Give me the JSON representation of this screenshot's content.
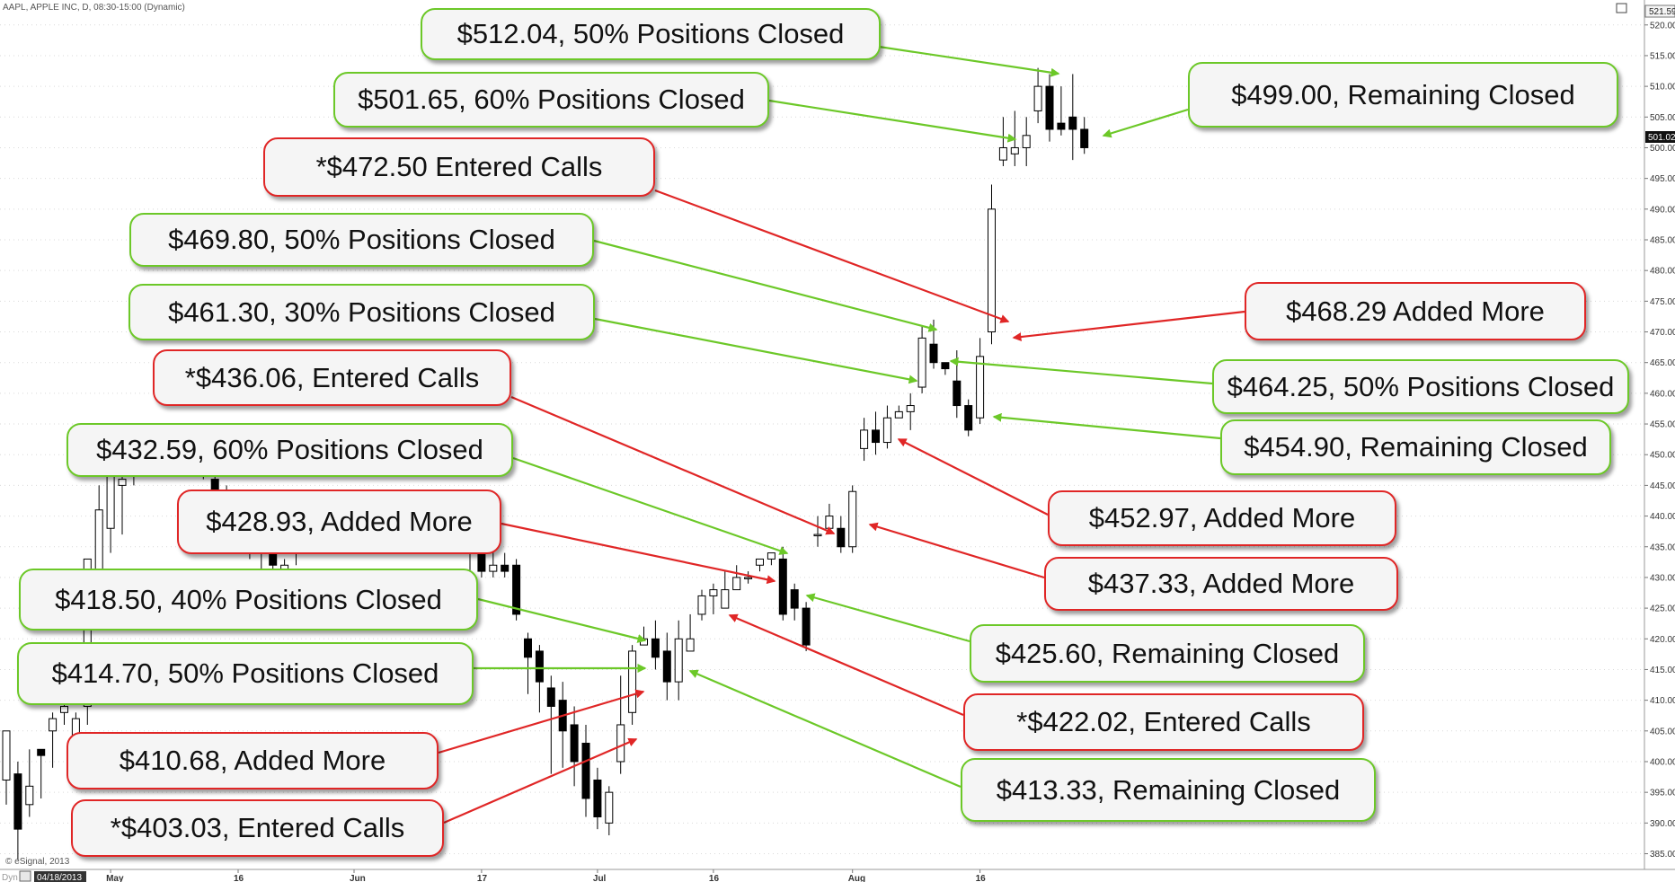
{
  "window": {
    "header_text": "AAPL, APPLE INC, D, 08:30-15:00 (Dynamic)",
    "corner_value": "521.59",
    "last_price_label": "501.02",
    "copyright": "© eSignal, 2013",
    "start_date_label": "04/18/2013",
    "mode_label": "Dyn"
  },
  "colors": {
    "exit": "#6cc828",
    "entry": "#e02626",
    "bull_fill": "#ffffff",
    "bear_fill": "#000000",
    "grid": "#d9d9d9"
  },
  "chart_data": {
    "type": "candlestick",
    "title": "",
    "xlabel": "",
    "ylabel": "",
    "ylim": [
      382,
      526
    ],
    "y_ticks": [
      "385.00",
      "390.00",
      "395.00",
      "400.00",
      "405.00",
      "410.00",
      "415.00",
      "420.00",
      "425.00",
      "430.00",
      "435.00",
      "440.00",
      "445.00",
      "450.00",
      "455.00",
      "460.00",
      "465.00",
      "470.00",
      "475.00",
      "480.00",
      "485.00",
      "490.00",
      "495.00",
      "500.00",
      "505.00",
      "510.00",
      "515.00",
      "520.00"
    ],
    "x_ticks": [
      {
        "label": "May",
        "bar": 9
      },
      {
        "label": "16",
        "bar": 20
      },
      {
        "label": "Jun",
        "bar": 30
      },
      {
        "label": "17",
        "bar": 41
      },
      {
        "label": "Jul",
        "bar": 51
      },
      {
        "label": "16",
        "bar": 61
      },
      {
        "label": "Aug",
        "bar": 73
      },
      {
        "label": "16",
        "bar": 84
      }
    ],
    "candles": [
      [
        397,
        405,
        393,
        405
      ],
      [
        398,
        389,
        384,
        400
      ],
      [
        393,
        396,
        391,
        402
      ],
      [
        402,
        401,
        394,
        402
      ],
      [
        405,
        407,
        399,
        408
      ],
      [
        408,
        409,
        406,
        410
      ],
      [
        402,
        407,
        401,
        408
      ],
      [
        409,
        433,
        406,
        433
      ],
      [
        426,
        441,
        424,
        445
      ],
      [
        438,
        448,
        434,
        449
      ],
      [
        445,
        446,
        437,
        448
      ],
      [
        448,
        452,
        445,
        454
      ],
      [
        450,
        452,
        448,
        453
      ],
      [
        449,
        450,
        447,
        451
      ],
      [
        451,
        453,
        449,
        454
      ],
      [
        453,
        451,
        448,
        454
      ],
      [
        451,
        449,
        447,
        453
      ],
      [
        450,
        448,
        446,
        451
      ],
      [
        446,
        444,
        441,
        447
      ],
      [
        444,
        442,
        439,
        445
      ],
      [
        440,
        438,
        435,
        441
      ],
      [
        438,
        436,
        433,
        439
      ],
      [
        436,
        434,
        431,
        437
      ],
      [
        434,
        432,
        429,
        435
      ],
      [
        431,
        432,
        428,
        433
      ],
      [
        434,
        436,
        432,
        437
      ],
      [
        437,
        440,
        435,
        441
      ],
      [
        441,
        440,
        437,
        442
      ],
      [
        439,
        439,
        436,
        440
      ],
      [
        438,
        440,
        437,
        441
      ],
      [
        439,
        442,
        438,
        443
      ],
      [
        441,
        439,
        437,
        442
      ],
      [
        440,
        441,
        438,
        442
      ],
      [
        442,
        443,
        440,
        444
      ],
      [
        441,
        440,
        438,
        442
      ],
      [
        439,
        440,
        437,
        441
      ],
      [
        441,
        442,
        439,
        443
      ],
      [
        442,
        441,
        439,
        443
      ],
      [
        440,
        439,
        437,
        441
      ],
      [
        438,
        437,
        434,
        439
      ],
      [
        436,
        434,
        431,
        437
      ],
      [
        434,
        431,
        430,
        437
      ],
      [
        431,
        432,
        430,
        436
      ],
      [
        432,
        431,
        430,
        434
      ],
      [
        432,
        424,
        423,
        433
      ],
      [
        420,
        417,
        411,
        421
      ],
      [
        418,
        413,
        408,
        419
      ],
      [
        412,
        409,
        398,
        414
      ],
      [
        410,
        405,
        399,
        413
      ],
      [
        406,
        400,
        396,
        409
      ],
      [
        403,
        394,
        391,
        406
      ],
      [
        397,
        391,
        389,
        399
      ],
      [
        390,
        395,
        388,
        396
      ],
      [
        400,
        406,
        398,
        414
      ],
      [
        408,
        418,
        406,
        419
      ],
      [
        419,
        420,
        419,
        422
      ],
      [
        420,
        417,
        415,
        423
      ],
      [
        418,
        413,
        410,
        421
      ],
      [
        413,
        420,
        410,
        423
      ],
      [
        418,
        420,
        418,
        424
      ],
      [
        424,
        427,
        423,
        428
      ],
      [
        427,
        428,
        424,
        429
      ],
      [
        425,
        428,
        425,
        431
      ],
      [
        428,
        430,
        428,
        432
      ],
      [
        430,
        430,
        429,
        431
      ],
      [
        432,
        433,
        431,
        433
      ],
      [
        433,
        434,
        432,
        434
      ],
      [
        433,
        424,
        423,
        435
      ],
      [
        428,
        425,
        423,
        429
      ],
      [
        425,
        419,
        418,
        426
      ],
      [
        437,
        437,
        435,
        440
      ],
      [
        438,
        440,
        438,
        442
      ],
      [
        438,
        435,
        434,
        440
      ],
      [
        435,
        444,
        434,
        445
      ],
      [
        451,
        454,
        449,
        456
      ],
      [
        454,
        452,
        450,
        457
      ],
      [
        452,
        456,
        451,
        458
      ],
      [
        456,
        457,
        456,
        458
      ],
      [
        457,
        458,
        454,
        460
      ],
      [
        461,
        469,
        460,
        471
      ],
      [
        468,
        465,
        464,
        472
      ],
      [
        465,
        464,
        463,
        465
      ],
      [
        462,
        458,
        456,
        467
      ],
      [
        458,
        454,
        453,
        459
      ],
      [
        456,
        466,
        455,
        469
      ],
      [
        470,
        490,
        468,
        494
      ],
      [
        498,
        500,
        497,
        505
      ],
      [
        499,
        500,
        497,
        506
      ],
      [
        500,
        502,
        497,
        505
      ],
      [
        506,
        510,
        504,
        513
      ],
      [
        510,
        503,
        501,
        512
      ],
      [
        504,
        503,
        502,
        510
      ],
      [
        505,
        503,
        498,
        512
      ],
      [
        503,
        500,
        499,
        505
      ]
    ],
    "annotations": [
      {
        "text": "$512.04, 50% Positions Closed",
        "kind": "exit"
      },
      {
        "text": "$501.65, 60% Positions Closed",
        "kind": "exit"
      },
      {
        "text": "*$472.50 Entered Calls",
        "kind": "entry"
      },
      {
        "text": "$469.80, 50% Positions Closed",
        "kind": "exit"
      },
      {
        "text": "$461.30, 30% Positions Closed",
        "kind": "exit"
      },
      {
        "text": "*$436.06, Entered Calls",
        "kind": "entry"
      },
      {
        "text": "$432.59, 60% Positions Closed",
        "kind": "exit"
      },
      {
        "text": "$428.93, Added More",
        "kind": "entry"
      },
      {
        "text": "$418.50, 40% Positions Closed",
        "kind": "exit"
      },
      {
        "text": "$414.70, 50% Positions Closed",
        "kind": "exit"
      },
      {
        "text": "$410.68, Added More",
        "kind": "entry"
      },
      {
        "text": "*$403.03, Entered Calls",
        "kind": "entry"
      },
      {
        "text": "$499.00, Remaining Closed",
        "kind": "exit"
      },
      {
        "text": "$468.29 Added More",
        "kind": "entry"
      },
      {
        "text": "$464.25, 50% Positions Closed",
        "kind": "exit"
      },
      {
        "text": "$454.90, Remaining Closed",
        "kind": "exit"
      },
      {
        "text": "$452.97, Added More",
        "kind": "entry"
      },
      {
        "text": "$437.33, Added More",
        "kind": "entry"
      },
      {
        "text": "$425.60, Remaining Closed",
        "kind": "exit"
      },
      {
        "text": "*$422.02, Entered Calls",
        "kind": "entry"
      },
      {
        "text": "$413.33, Remaining Closed",
        "kind": "exit"
      }
    ]
  }
}
